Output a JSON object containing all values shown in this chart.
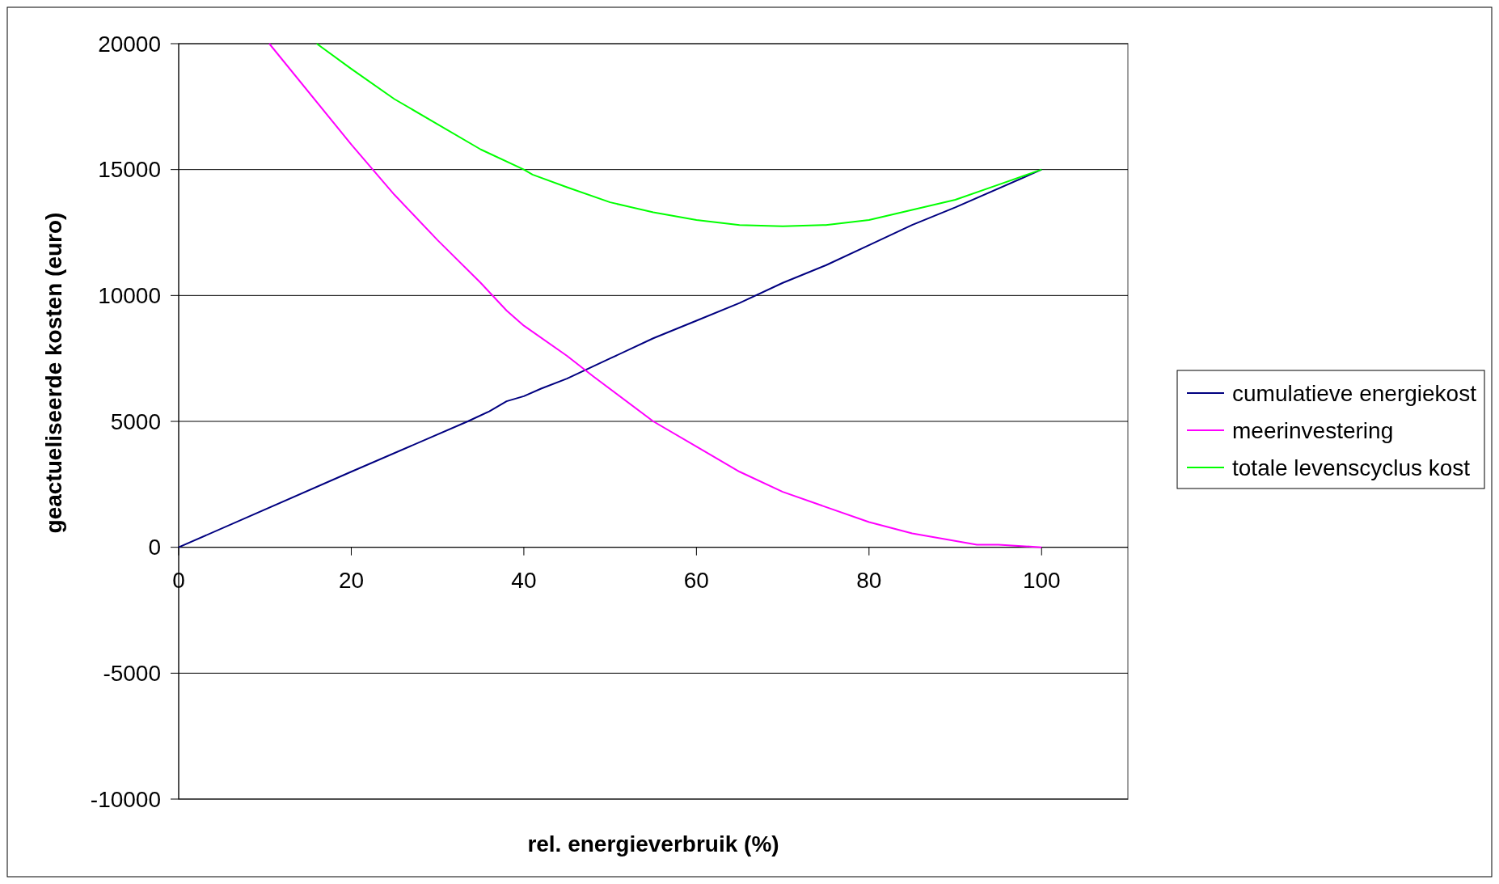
{
  "chart_data": {
    "type": "line",
    "xlabel": "rel. energieverbruik (%)",
    "ylabel": "geactueliseerde kosten (euro)",
    "xlim": [
      0,
      110
    ],
    "xticks": [
      0,
      20,
      40,
      60,
      80,
      100
    ],
    "ylim": [
      -10000,
      20000
    ],
    "yticks": [
      -10000,
      -5000,
      0,
      5000,
      10000,
      15000,
      20000
    ],
    "grid": "y",
    "legend": "right",
    "marker": "none",
    "line_style": "solid",
    "series": [
      {
        "name": "cumulatieve energiekost",
        "color": "#000080",
        "x": [
          0,
          20,
          33.5,
          36,
          38,
          40,
          42,
          45,
          50,
          55,
          60,
          65,
          70,
          75,
          80,
          85,
          90,
          100
        ],
        "values": [
          0,
          3000,
          5000,
          5400,
          5800,
          6000,
          6300,
          6700,
          7500,
          8300,
          9000,
          9700,
          10500,
          11200,
          12000,
          12800,
          13500,
          15000
        ]
      },
      {
        "name": "meerinvestering",
        "color": "#ff00ff",
        "x": [
          10.5,
          20,
          25,
          30,
          35,
          38,
          40,
          45,
          48,
          55,
          60,
          65,
          70,
          75,
          80,
          85,
          92.5,
          95,
          100
        ],
        "values": [
          20000,
          16000,
          14000,
          12200,
          10500,
          9400,
          8800,
          7600,
          6800,
          5000,
          4000,
          3000,
          2200,
          1600,
          1000,
          550,
          100,
          100,
          0
        ]
      },
      {
        "name": "totale levenscyclus kost",
        "color": "#00ff00",
        "x": [
          16,
          20,
          25,
          30,
          35,
          40,
          41,
          45,
          50,
          55,
          60,
          65,
          70,
          75,
          80,
          85,
          90,
          95,
          100
        ],
        "values": [
          20000,
          19000,
          17800,
          16800,
          15800,
          15000,
          14800,
          14300,
          13700,
          13300,
          13000,
          12800,
          12750,
          12800,
          13000,
          13400,
          13800,
          14400,
          15000
        ]
      }
    ]
  }
}
